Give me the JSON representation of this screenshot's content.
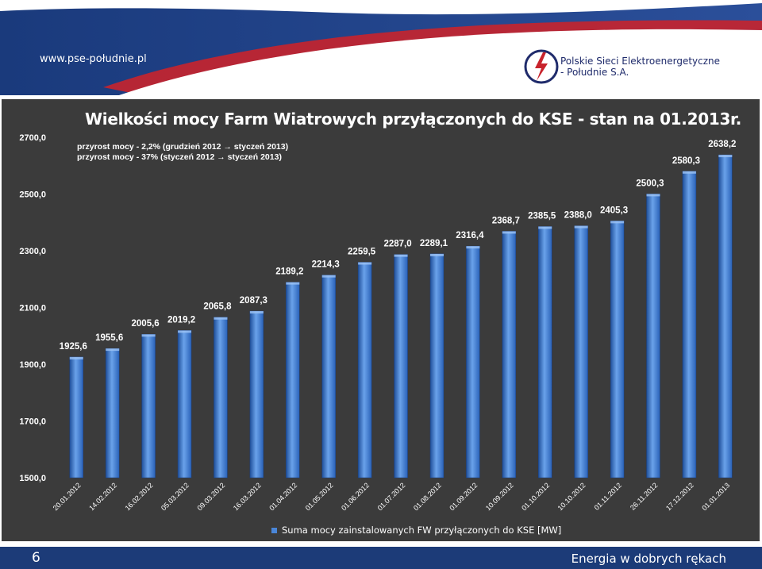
{
  "header": {
    "site_url": "www.pse-południe.pl",
    "logo_line1": "Polskie Sieci Elektroenergetyczne",
    "logo_line2": "- Południe S.A."
  },
  "footer": {
    "page_number": "6",
    "tagline": "Energia w dobrych rękach"
  },
  "notes": {
    "line1": "przyrost mocy - 2,2% (grudzień 2012 → styczeń 2013)",
    "line2": "przyrost mocy - 37% (styczeń 2012 → styczeń 2013)"
  },
  "colors": {
    "panel_bg": "#3b3b3b",
    "bar": "#3a78d0",
    "bar_light": "#6aa2ea",
    "bar_dark": "#1f4f9a",
    "header_blue": "#1c3b78",
    "accent_red": "#c8232c"
  },
  "chart_data": {
    "type": "bar",
    "title": "Wielkości mocy Farm Wiatrowych przyłączonych do KSE - stan na  01.2013r.",
    "xlabel": "",
    "ylabel": "",
    "ylim": [
      1500,
      2700
    ],
    "yticks": [
      "1500,0",
      "1700,0",
      "1900,0",
      "2100,0",
      "2300,0",
      "2500,0",
      "2700,0"
    ],
    "ytick_values": [
      1500,
      1700,
      1900,
      2100,
      2300,
      2500,
      2700
    ],
    "grid": false,
    "legend_position": "bottom",
    "categories": [
      "20.01.2012",
      "14.02.2012",
      "16.02.2012",
      "05.03.2012",
      "09.03.2012",
      "16.03.2012",
      "01.04.2012",
      "01.05.2012",
      "01.06.2012",
      "01.07.2012",
      "01.08.2012",
      "01.09.2012",
      "10.09.2012",
      "01.10.2012",
      "10.10.2012",
      "01.11.2012",
      "26.11.2012",
      "17.12.2012",
      "01.01.2013"
    ],
    "series": [
      {
        "name": "Suma mocy zainstalowanych FW przyłączonych do KSE [MW]",
        "values": [
          1925.6,
          1955.6,
          2005.6,
          2019.2,
          2065.8,
          2087.3,
          2189.2,
          2214.3,
          2259.5,
          2287.0,
          2289.1,
          2316.4,
          2368.7,
          2385.5,
          2388.0,
          2405.3,
          2500.3,
          2580.3,
          2638.2
        ],
        "labels": [
          "1925,6",
          "1955,6",
          "2005,6",
          "2019,2",
          "2065,8",
          "2087,3",
          "2189,2",
          "2214,3",
          "2259,5",
          "2287,0",
          "2289,1",
          "2316,4",
          "2368,7",
          "2385,5",
          "2388,0",
          "2405,3",
          "2500,3",
          "2580,3",
          "2638,2"
        ]
      }
    ]
  }
}
